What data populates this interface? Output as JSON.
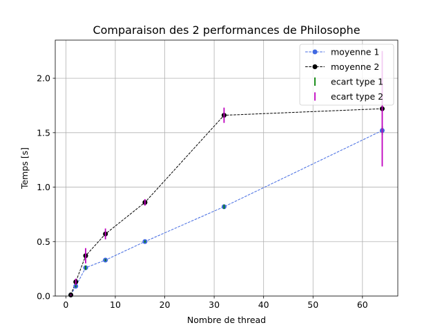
{
  "chart_data": {
    "type": "line",
    "title": "Comparaison des 2 performances de Philosophe",
    "xlabel": "Nombre de thread",
    "ylabel": "Temps [s]",
    "xlim": [
      -2.15,
      67.15
    ],
    "ylim": [
      0,
      2.35
    ],
    "xticks": [
      0,
      10,
      20,
      30,
      40,
      50,
      60
    ],
    "yticks": [
      0.0,
      0.5,
      1.0,
      1.5,
      2.0
    ],
    "xtick_labels": [
      "0",
      "10",
      "20",
      "30",
      "40",
      "50",
      "60"
    ],
    "ytick_labels": [
      "0.0",
      "0.5",
      "1.0",
      "1.5",
      "2.0"
    ],
    "grid": true,
    "legend_position": "top-right",
    "x": [
      1,
      2,
      4,
      8,
      16,
      32,
      64
    ],
    "series": [
      {
        "name": "moyenne 1",
        "values": [
          0.01,
          0.09,
          0.26,
          0.33,
          0.5,
          0.82,
          1.52
        ],
        "color": "#4169e1",
        "marker": "circle",
        "line": "dashed"
      },
      {
        "name": "moyenne 2",
        "values": [
          0.01,
          0.13,
          0.37,
          0.57,
          0.86,
          1.66,
          1.72
        ],
        "color": "#000000",
        "marker": "circle",
        "line": "dashed"
      }
    ],
    "error_bars": [
      {
        "name": "ecart type 1",
        "color": "#008000",
        "of_series": 0,
        "errors": [
          0.005,
          0.01,
          0.02,
          0.01,
          0.01,
          0.02,
          0.04
        ]
      },
      {
        "name": "ecart type 2",
        "color": "#bf00bf",
        "of_series": 1,
        "errors": [
          0.005,
          0.03,
          0.07,
          0.05,
          0.03,
          0.07,
          0.53
        ]
      }
    ]
  }
}
